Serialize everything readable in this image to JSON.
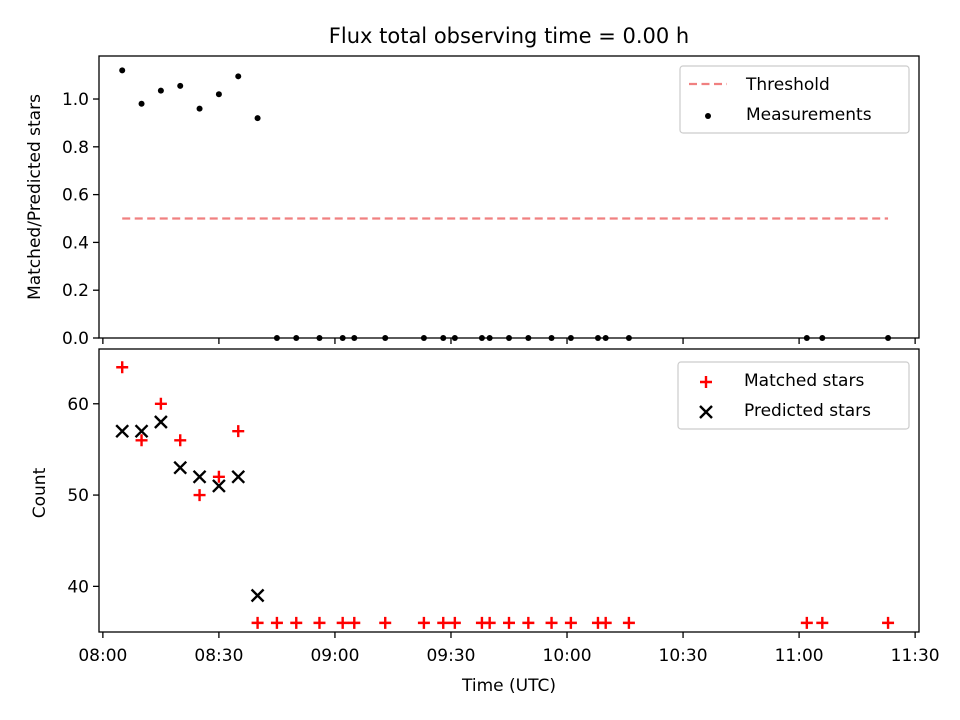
{
  "figure": {
    "title": "Flux total observing time = 0.00 h"
  },
  "chart_data": [
    {
      "type": "scatter",
      "title": "Flux total observing time = 0.00 h",
      "ylabel": "Matched/Predicted stars",
      "ylim": [
        0,
        1.18
      ],
      "yticks": [
        0.0,
        0.2,
        0.4,
        0.6,
        0.8,
        1.0
      ],
      "ytick_labels": [
        "0.0",
        "0.2",
        "0.4",
        "0.6",
        "0.8",
        "1.0"
      ],
      "legend": {
        "placement": "upper-right",
        "entries": [
          "Threshold",
          "Measurements"
        ]
      },
      "series": [
        {
          "name": "Threshold",
          "kind": "dashed-line",
          "color": "#f08080",
          "x": [
            "08:05",
            "11:23"
          ],
          "y": [
            0.5,
            0.5
          ]
        },
        {
          "name": "Measurements",
          "kind": "dot",
          "color": "#000000",
          "x": [
            "08:05",
            "08:10",
            "08:15",
            "08:20",
            "08:25",
            "08:30",
            "08:35",
            "08:40",
            "08:45",
            "08:50",
            "08:56",
            "09:02",
            "09:05",
            "09:13",
            "09:23",
            "09:28",
            "09:31",
            "09:38",
            "09:40",
            "09:45",
            "09:50",
            "09:56",
            "10:01",
            "10:08",
            "10:10",
            "10:16",
            "11:02",
            "11:06",
            "11:23"
          ],
          "y": [
            1.12,
            0.98,
            1.035,
            1.055,
            0.96,
            1.02,
            1.095,
            0.92,
            0,
            0,
            0,
            0,
            0,
            0,
            0,
            0,
            0,
            0,
            0,
            0,
            0,
            0,
            0,
            0,
            0,
            0,
            0,
            0,
            0
          ]
        }
      ]
    },
    {
      "type": "scatter",
      "xlabel": "Time (UTC)",
      "ylabel": "Count",
      "ylim": [
        35,
        66
      ],
      "yticks": [
        40,
        50,
        60
      ],
      "ytick_labels": [
        "40",
        "50",
        "60"
      ],
      "xlim": [
        "07:59",
        "11:31"
      ],
      "xticks": [
        "08:00",
        "08:30",
        "09:00",
        "09:30",
        "10:00",
        "10:30",
        "11:00",
        "11:30"
      ],
      "xtick_labels": [
        "08:00",
        "08:30",
        "09:00",
        "09:30",
        "10:00",
        "10:30",
        "11:00",
        "11:30"
      ],
      "legend": {
        "placement": "upper-right",
        "entries": [
          "Matched stars",
          "Predicted stars"
        ]
      },
      "series": [
        {
          "name": "Matched stars",
          "kind": "plus",
          "color": "#ff0000",
          "x": [
            "08:05",
            "08:10",
            "08:15",
            "08:20",
            "08:25",
            "08:30",
            "08:35",
            "08:40",
            "08:45",
            "08:50",
            "08:56",
            "09:02",
            "09:05",
            "09:13",
            "09:23",
            "09:28",
            "09:31",
            "09:38",
            "09:40",
            "09:45",
            "09:50",
            "09:56",
            "10:01",
            "10:08",
            "10:10",
            "10:16",
            "11:02",
            "11:06",
            "11:23"
          ],
          "y": [
            64,
            56,
            60,
            56,
            50,
            52,
            57,
            36,
            36,
            36,
            36,
            36,
            36,
            36,
            36,
            36,
            36,
            36,
            36,
            36,
            36,
            36,
            36,
            36,
            36,
            36,
            36,
            36,
            36
          ]
        },
        {
          "name": "Predicted stars",
          "kind": "cross",
          "color": "#000000",
          "x": [
            "08:05",
            "08:10",
            "08:15",
            "08:20",
            "08:25",
            "08:30",
            "08:35",
            "08:40"
          ],
          "y": [
            57,
            57,
            58,
            53,
            52,
            51,
            52,
            39
          ]
        }
      ]
    }
  ]
}
